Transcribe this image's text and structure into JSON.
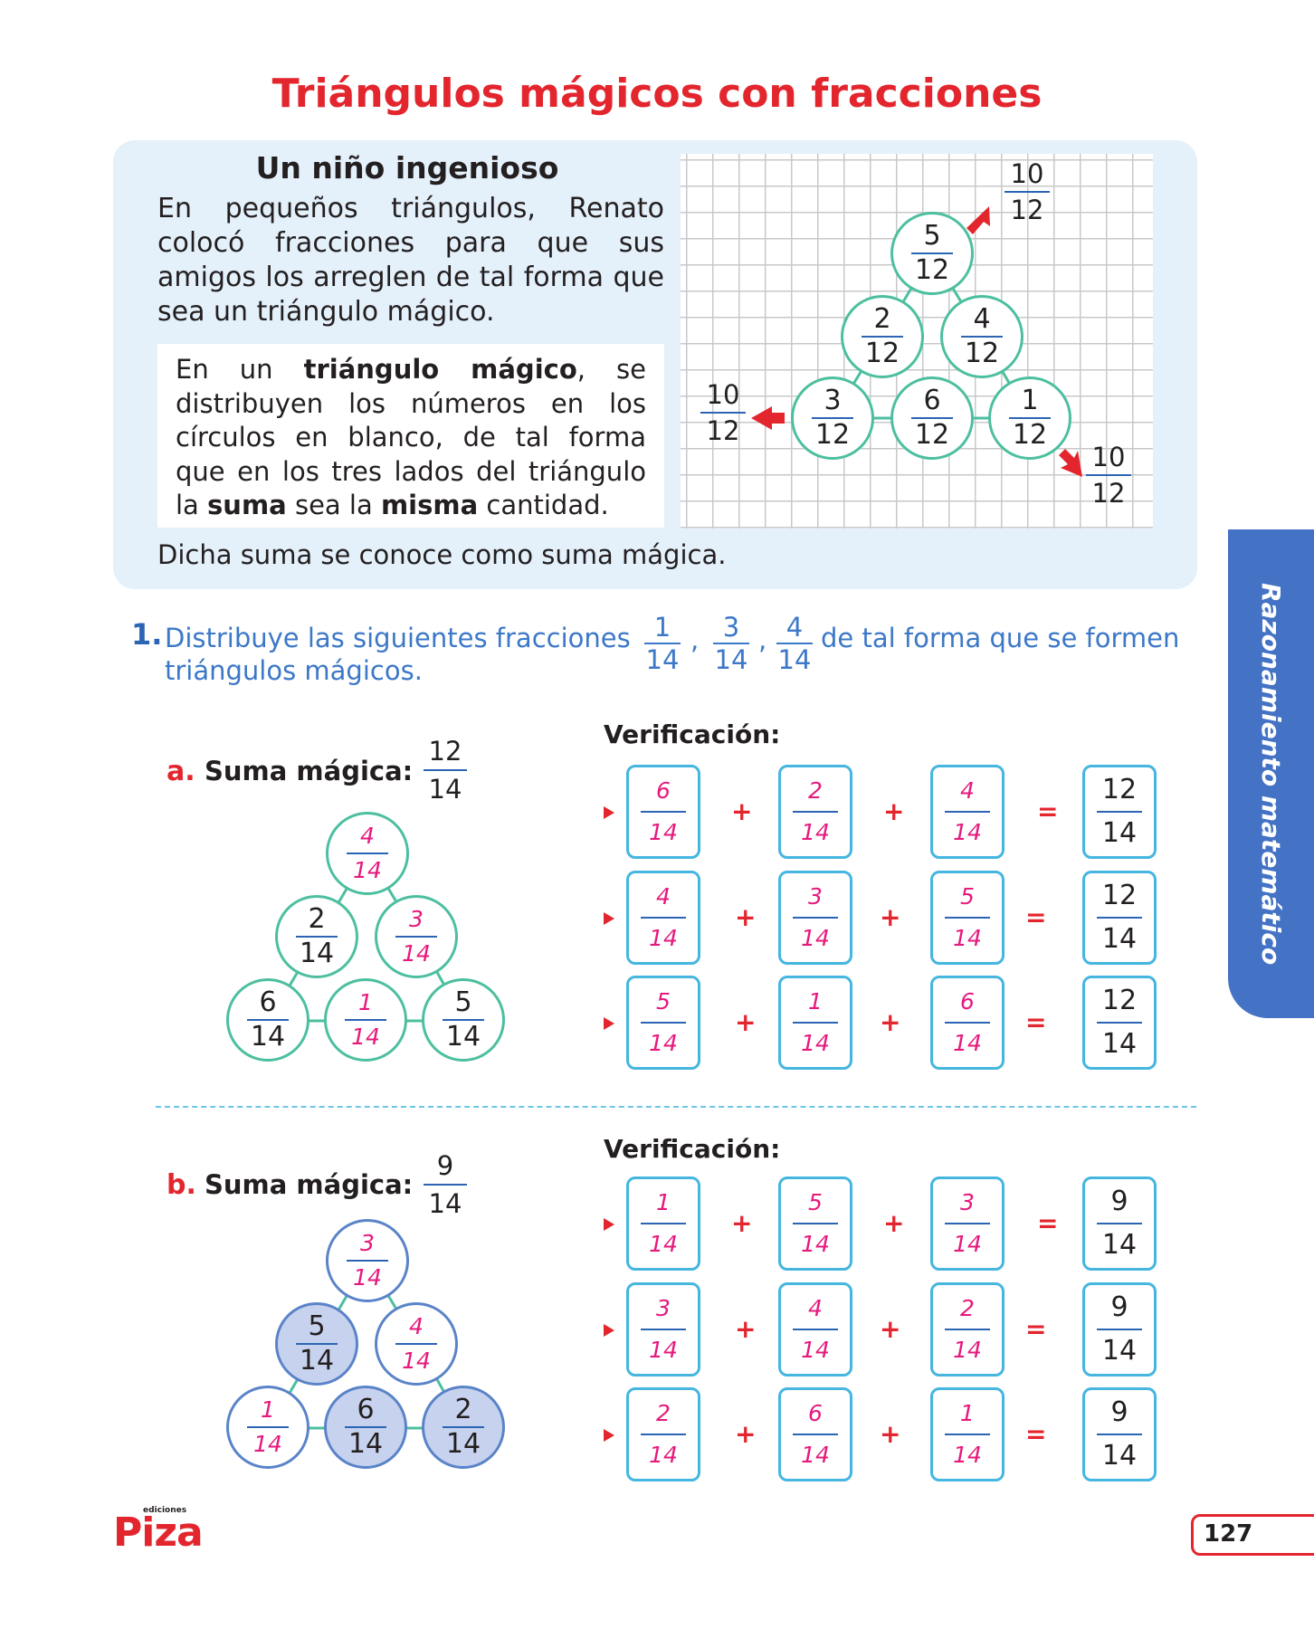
{
  "title": "Triángulos mágicos con fracciones",
  "intro": {
    "heading": "Un niño ingenioso",
    "para_lines": [
      "En pequeños triángulos, Renato",
      "colocó fracciones para que sus",
      "amigos los arreglen de tal forma que",
      "sea un triángulo mágico."
    ],
    "def": {
      "p1": "En un ",
      "b1": "triángulo mágico",
      "p2": ", se distribuyen los números en los círculos en blanco, de tal forma que en los tres lados del triángulo la ",
      "b2": "suma",
      "p3": " sea la ",
      "b3": "misma",
      "p4": " cantidad."
    },
    "closing": "Dicha suma se conoce como suma mágica.",
    "triangle": {
      "top": {
        "n": "5",
        "d": "12"
      },
      "mid_left": {
        "n": "2",
        "d": "12"
      },
      "mid_right": {
        "n": "4",
        "d": "12"
      },
      "bot_left": {
        "n": "3",
        "d": "12"
      },
      "bot_mid": {
        "n": "6",
        "d": "12"
      },
      "bot_right": {
        "n": "1",
        "d": "12"
      },
      "side_top": {
        "n": "10",
        "d": "12"
      },
      "side_left": {
        "n": "10",
        "d": "12"
      },
      "side_right": {
        "n": "10",
        "d": "12"
      }
    }
  },
  "q1": {
    "number": "1.",
    "text_a": "Distribuye las siguientes fracciones",
    "text_b": "de tal forma que se formen",
    "text_c": "triángulos mágicos.",
    "fractions": [
      {
        "n": "1",
        "d": "14"
      },
      {
        "n": "3",
        "d": "14"
      },
      {
        "n": "4",
        "d": "14"
      }
    ],
    "separator": ","
  },
  "verif_label": "Verificación:",
  "ops": {
    "plus": "+",
    "eq": "="
  },
  "part_a": {
    "letter": "a.",
    "label": "Suma mágica:",
    "sum": {
      "n": "12",
      "d": "14"
    },
    "triangle": {
      "top": {
        "n": "4",
        "d": "14"
      },
      "mid_left": {
        "n": "2",
        "d": "14"
      },
      "mid_right": {
        "n": "3",
        "d": "14"
      },
      "bot_left": {
        "n": "6",
        "d": "14"
      },
      "bot_mid": {
        "n": "1",
        "d": "14"
      },
      "bot_right": {
        "n": "5",
        "d": "14"
      }
    },
    "rows": [
      [
        {
          "n": "6",
          "d": "14"
        },
        {
          "n": "2",
          "d": "14"
        },
        {
          "n": "4",
          "d": "14"
        },
        {
          "n": "12",
          "d": "14"
        }
      ],
      [
        {
          "n": "4",
          "d": "14"
        },
        {
          "n": "3",
          "d": "14"
        },
        {
          "n": "5",
          "d": "14"
        },
        {
          "n": "12",
          "d": "14"
        }
      ],
      [
        {
          "n": "5",
          "d": "14"
        },
        {
          "n": "1",
          "d": "14"
        },
        {
          "n": "6",
          "d": "14"
        },
        {
          "n": "12",
          "d": "14"
        }
      ]
    ]
  },
  "part_b": {
    "letter": "b.",
    "label": "Suma mágica:",
    "sum": {
      "n": "9",
      "d": "14"
    },
    "triangle": {
      "top": {
        "n": "3",
        "d": "14"
      },
      "mid_left": {
        "n": "5",
        "d": "14"
      },
      "mid_right": {
        "n": "4",
        "d": "14"
      },
      "bot_left": {
        "n": "1",
        "d": "14"
      },
      "bot_mid": {
        "n": "6",
        "d": "14"
      },
      "bot_right": {
        "n": "2",
        "d": "14"
      }
    },
    "rows": [
      [
        {
          "n": "1",
          "d": "14"
        },
        {
          "n": "5",
          "d": "14"
        },
        {
          "n": "3",
          "d": "14"
        },
        {
          "n": "9",
          "d": "14"
        }
      ],
      [
        {
          "n": "3",
          "d": "14"
        },
        {
          "n": "4",
          "d": "14"
        },
        {
          "n": "2",
          "d": "14"
        },
        {
          "n": "9",
          "d": "14"
        }
      ],
      [
        {
          "n": "2",
          "d": "14"
        },
        {
          "n": "6",
          "d": "14"
        },
        {
          "n": "1",
          "d": "14"
        },
        {
          "n": "9",
          "d": "14"
        }
      ]
    ]
  },
  "side_tab": "Razonamiento matemático",
  "footer": {
    "logo": "Piza",
    "logo_sub": "ediciones",
    "page": "127"
  },
  "colors": {
    "title_red": "#e3262e",
    "accent_blue": "#3c78c8",
    "green_circle": "#4cbfa0",
    "blue_circle": "#5a83c8",
    "box_cyan": "#45b6df",
    "answer_pink": "#e6197d",
    "tab_blue": "#4472c4"
  }
}
